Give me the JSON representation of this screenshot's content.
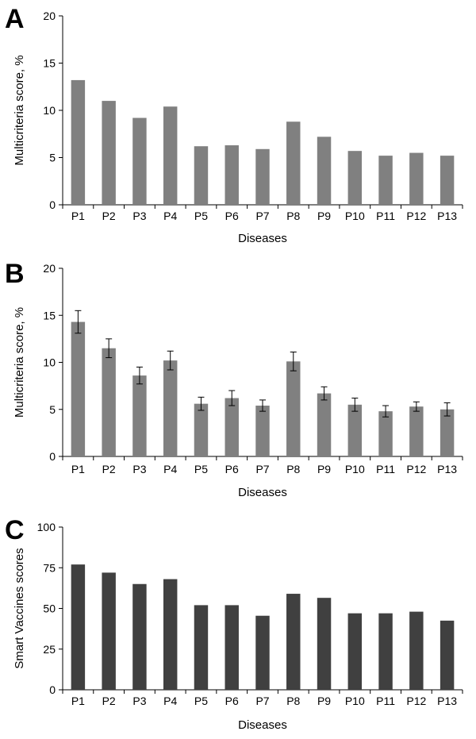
{
  "chart_data": [
    {
      "panel": "A",
      "type": "bar",
      "categories": [
        "P1",
        "P2",
        "P3",
        "P4",
        "P5",
        "P6",
        "P7",
        "P8",
        "P9",
        "P10",
        "P11",
        "P12",
        "P13"
      ],
      "values": [
        13.2,
        11.0,
        9.2,
        10.4,
        6.2,
        6.3,
        5.9,
        8.8,
        7.2,
        5.7,
        5.2,
        5.5,
        5.2
      ],
      "xlabel": "Diseases",
      "ylabel": "Multicriteria score, %",
      "ylim": [
        0,
        20
      ],
      "yticks": [
        0,
        5,
        10,
        15,
        20
      ],
      "bar_color": "#808080",
      "grid": false
    },
    {
      "panel": "B",
      "type": "bar",
      "categories": [
        "P1",
        "P2",
        "P3",
        "P4",
        "P5",
        "P6",
        "P7",
        "P8",
        "P9",
        "P10",
        "P11",
        "P12",
        "P13"
      ],
      "values": [
        14.3,
        11.5,
        8.6,
        10.2,
        5.6,
        6.2,
        5.4,
        10.1,
        6.7,
        5.5,
        4.8,
        5.3,
        5.0
      ],
      "errors": [
        1.2,
        1.0,
        0.9,
        1.0,
        0.7,
        0.8,
        0.6,
        1.0,
        0.7,
        0.7,
        0.6,
        0.5,
        0.7
      ],
      "xlabel": "Diseases",
      "ylabel": "Multicriteria score, %",
      "ylim": [
        0,
        20
      ],
      "yticks": [
        0,
        5,
        10,
        15,
        20
      ],
      "bar_color": "#808080",
      "grid": false
    },
    {
      "panel": "C",
      "type": "bar",
      "categories": [
        "P1",
        "P2",
        "P3",
        "P4",
        "P5",
        "P6",
        "P7",
        "P8",
        "P9",
        "P10",
        "P11",
        "P12",
        "P13"
      ],
      "values": [
        77,
        72,
        65,
        68,
        52,
        52,
        45.5,
        59,
        56.5,
        47,
        47,
        48,
        42.5
      ],
      "xlabel": "Diseases",
      "ylabel": "Smart Vaccines scores",
      "ylim": [
        0,
        100
      ],
      "yticks": [
        0,
        25,
        50,
        75,
        100
      ],
      "bar_color": "#404040",
      "grid": false
    }
  ]
}
